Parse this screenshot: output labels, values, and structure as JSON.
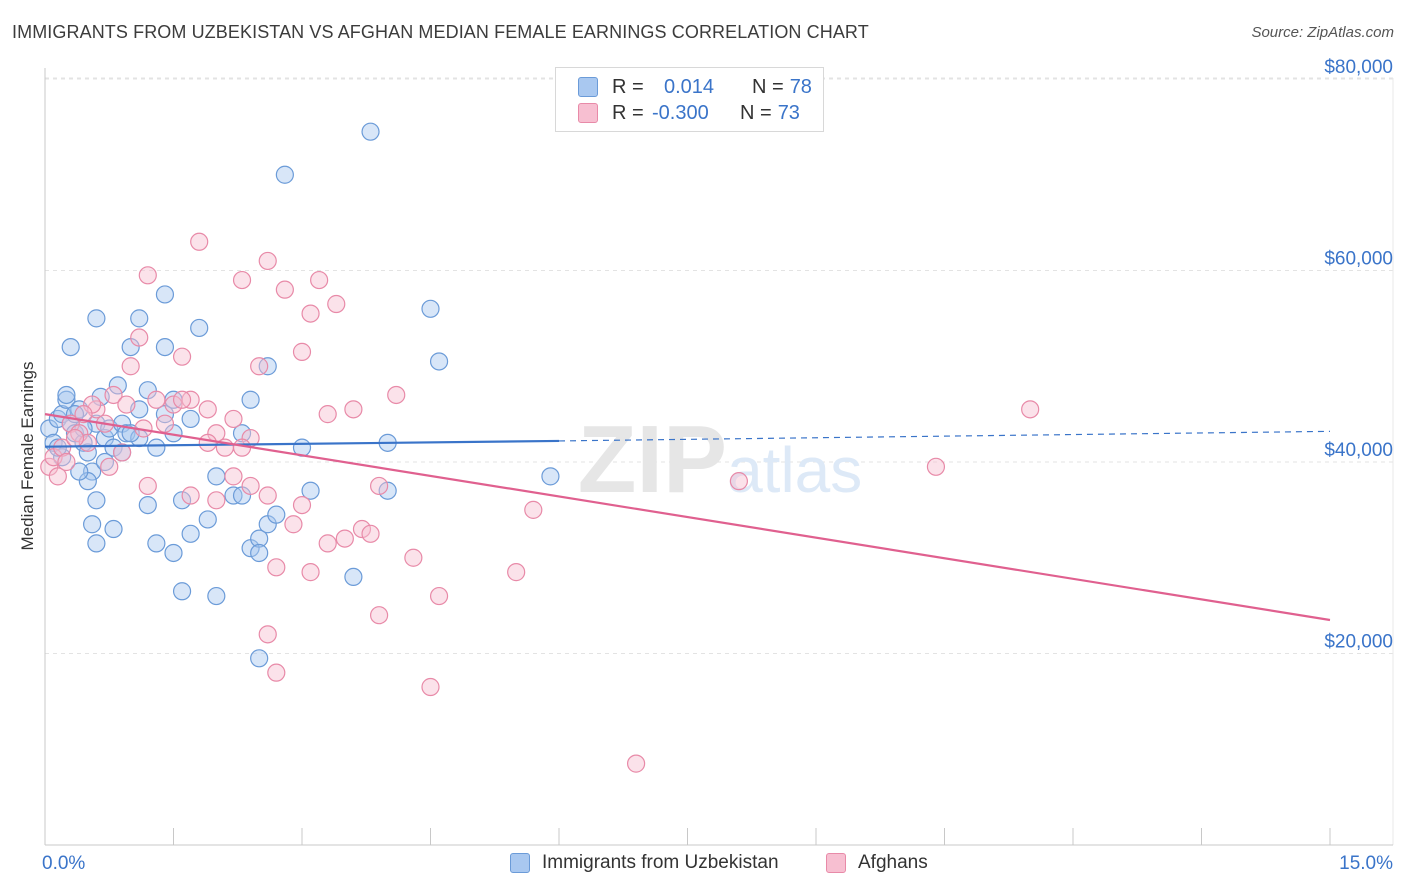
{
  "title": "IMMIGRANTS FROM UZBEKISTAN VS AFGHAN MEDIAN FEMALE EARNINGS CORRELATION CHART",
  "source": "Source: ZipAtlas.com",
  "watermark": "ZIPatlas",
  "legend": {
    "rows": [
      {
        "r_label": "R =",
        "r_value": "0.014",
        "n_label": "N =",
        "n_value": "78"
      },
      {
        "r_label": "R =",
        "r_value": "-0.300",
        "n_label": "N =",
        "n_value": "73"
      }
    ]
  },
  "bottom_legend": {
    "series1": "Immigrants from Uzbekistan",
    "series2": "Afghans"
  },
  "colors": {
    "blue_fill": "#a9c8f0",
    "blue_stroke": "#6b9bd8",
    "blue_line": "#3a74c9",
    "pink_fill": "#f7bfd1",
    "pink_stroke": "#e88aa8",
    "pink_line": "#e0608f",
    "axis_text": "#3a74c9",
    "grid": "#e3e3e3"
  },
  "chart_data": {
    "type": "scatter",
    "ylabel": "Median Female Earnings",
    "xlim": [
      0,
      15
    ],
    "ylim": [
      0,
      82000
    ],
    "x_ticks": [
      "0.0%",
      "15.0%"
    ],
    "y_ticks": [
      "$20,000",
      "$40,000",
      "$60,000",
      "$80,000"
    ],
    "y_tick_values": [
      20000,
      40000,
      60000,
      80000
    ],
    "grid": true,
    "series": [
      {
        "name": "Immigrants from Uzbekistan",
        "trend": {
          "x": [
            0.0,
            6.0
          ],
          "y": [
            41600,
            42200
          ],
          "dashed_to": [
            15.0,
            43200
          ]
        },
        "points": [
          [
            0.05,
            43500
          ],
          [
            0.1,
            42000
          ],
          [
            0.15,
            44500
          ],
          [
            0.2,
            45000
          ],
          [
            0.25,
            46500
          ],
          [
            0.3,
            44000
          ],
          [
            0.35,
            43000
          ],
          [
            0.4,
            45500
          ],
          [
            0.45,
            42000
          ],
          [
            0.5,
            41000
          ],
          [
            0.55,
            39000
          ],
          [
            0.6,
            44000
          ],
          [
            0.65,
            46800
          ],
          [
            0.7,
            42500
          ],
          [
            0.75,
            43500
          ],
          [
            0.8,
            41500
          ],
          [
            0.85,
            48000
          ],
          [
            0.9,
            44000
          ],
          [
            0.95,
            43000
          ],
          [
            1.0,
            52000
          ],
          [
            1.1,
            45500
          ],
          [
            1.2,
            47500
          ],
          [
            1.3,
            41500
          ],
          [
            1.4,
            45000
          ],
          [
            1.5,
            43000
          ],
          [
            0.3,
            52000
          ],
          [
            0.6,
            55000
          ],
          [
            1.1,
            55000
          ],
          [
            1.4,
            52000
          ],
          [
            1.8,
            54000
          ],
          [
            2.6,
            50000
          ],
          [
            0.5,
            38000
          ],
          [
            0.6,
            36000
          ],
          [
            0.55,
            33500
          ],
          [
            0.6,
            31500
          ],
          [
            0.8,
            33000
          ],
          [
            1.2,
            35500
          ],
          [
            1.3,
            31500
          ],
          [
            1.5,
            30500
          ],
          [
            1.6,
            36000
          ],
          [
            1.7,
            32500
          ],
          [
            1.9,
            34000
          ],
          [
            2.0,
            38500
          ],
          [
            2.2,
            36500
          ],
          [
            2.3,
            36500
          ],
          [
            2.4,
            31000
          ],
          [
            2.5,
            32000
          ],
          [
            2.6,
            33500
          ],
          [
            2.7,
            34500
          ],
          [
            2.5,
            30500
          ],
          [
            1.6,
            26500
          ],
          [
            2.0,
            26000
          ],
          [
            2.5,
            19500
          ],
          [
            3.1,
            37000
          ],
          [
            3.6,
            28000
          ],
          [
            4.0,
            37000
          ],
          [
            4.0,
            42000
          ],
          [
            4.5,
            56000
          ],
          [
            4.6,
            50500
          ],
          [
            5.9,
            38500
          ],
          [
            3.8,
            74500
          ],
          [
            2.8,
            70000
          ],
          [
            1.4,
            57500
          ],
          [
            3.0,
            41500
          ],
          [
            0.2,
            40500
          ],
          [
            0.4,
            39000
          ],
          [
            0.7,
            40000
          ],
          [
            0.9,
            41000
          ],
          [
            1.1,
            42500
          ],
          [
            1.7,
            44500
          ],
          [
            2.3,
            43000
          ],
          [
            1.5,
            46500
          ],
          [
            0.15,
            41500
          ],
          [
            0.25,
            47000
          ],
          [
            0.35,
            45000
          ],
          [
            0.45,
            43500
          ],
          [
            2.4,
            46500
          ],
          [
            1.0,
            43000
          ]
        ]
      },
      {
        "name": "Afghans",
        "trend": {
          "x": [
            0.0,
            15.0
          ],
          "y": [
            45000,
            23500
          ]
        },
        "points": [
          [
            0.05,
            39500
          ],
          [
            0.1,
            40500
          ],
          [
            0.2,
            41500
          ],
          [
            0.3,
            44000
          ],
          [
            0.4,
            43000
          ],
          [
            0.5,
            42000
          ],
          [
            0.6,
            45500
          ],
          [
            0.7,
            44000
          ],
          [
            0.8,
            47000
          ],
          [
            0.9,
            41000
          ],
          [
            1.0,
            50000
          ],
          [
            1.1,
            53000
          ],
          [
            1.2,
            59500
          ],
          [
            1.3,
            46500
          ],
          [
            1.4,
            44000
          ],
          [
            1.5,
            46000
          ],
          [
            1.6,
            51000
          ],
          [
            1.7,
            46500
          ],
          [
            1.8,
            63000
          ],
          [
            1.9,
            45500
          ],
          [
            2.0,
            43000
          ],
          [
            2.1,
            41500
          ],
          [
            2.2,
            44500
          ],
          [
            2.3,
            59000
          ],
          [
            2.4,
            42500
          ],
          [
            2.5,
            50000
          ],
          [
            2.6,
            61000
          ],
          [
            2.8,
            58000
          ],
          [
            3.0,
            51500
          ],
          [
            3.1,
            55500
          ],
          [
            3.2,
            59000
          ],
          [
            3.4,
            56500
          ],
          [
            3.3,
            45000
          ],
          [
            3.6,
            45500
          ],
          [
            4.1,
            47000
          ],
          [
            1.2,
            37500
          ],
          [
            1.7,
            36500
          ],
          [
            2.0,
            36000
          ],
          [
            2.2,
            38500
          ],
          [
            2.4,
            37500
          ],
          [
            2.6,
            36500
          ],
          [
            2.9,
            33500
          ],
          [
            3.0,
            35500
          ],
          [
            3.5,
            32000
          ],
          [
            3.7,
            33000
          ],
          [
            3.8,
            32500
          ],
          [
            3.9,
            37500
          ],
          [
            4.3,
            30000
          ],
          [
            2.7,
            29000
          ],
          [
            3.1,
            28500
          ],
          [
            3.9,
            24000
          ],
          [
            4.6,
            26000
          ],
          [
            5.5,
            28500
          ],
          [
            5.7,
            35000
          ],
          [
            2.6,
            22000
          ],
          [
            2.7,
            18000
          ],
          [
            4.5,
            16500
          ],
          [
            6.9,
            8500
          ],
          [
            8.1,
            38000
          ],
          [
            10.4,
            39500
          ],
          [
            11.5,
            45500
          ],
          [
            0.15,
            38500
          ],
          [
            0.25,
            40000
          ],
          [
            0.35,
            42500
          ],
          [
            0.55,
            46000
          ],
          [
            0.75,
            39500
          ],
          [
            0.95,
            46000
          ],
          [
            1.15,
            43500
          ],
          [
            1.6,
            46500
          ],
          [
            1.9,
            42000
          ],
          [
            2.3,
            41500
          ],
          [
            3.3,
            31500
          ],
          [
            0.45,
            45000
          ]
        ]
      }
    ]
  }
}
